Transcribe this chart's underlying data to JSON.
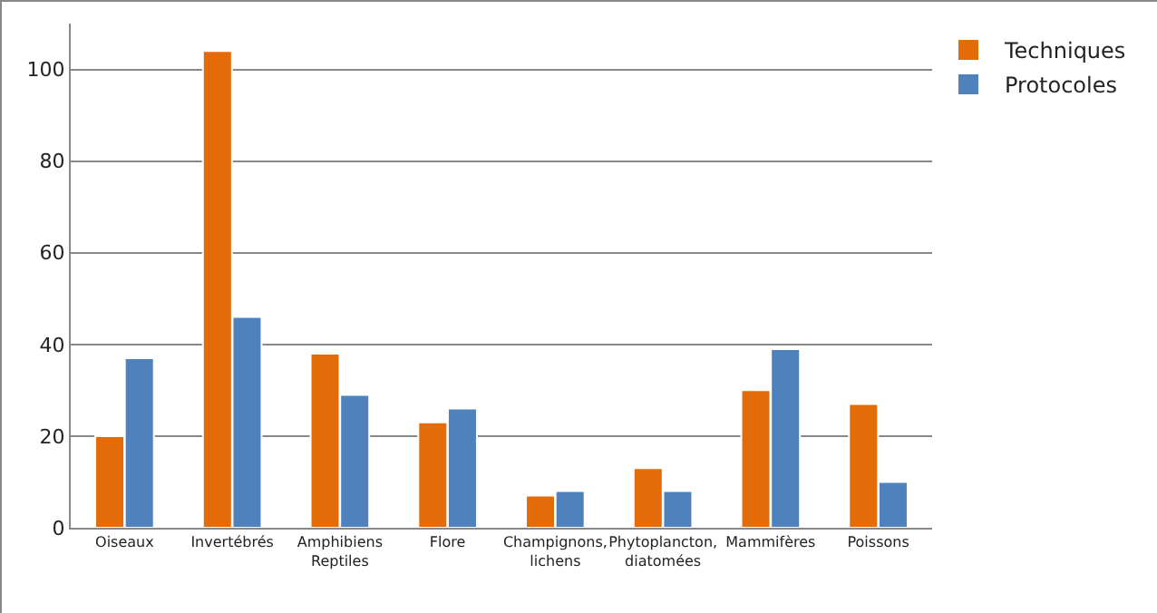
{
  "chart_data": {
    "type": "bar",
    "categories": [
      "Oiseaux",
      "Invertébrés",
      "Amphibiens\nReptiles",
      "Flore",
      "Champignons,\nlichens",
      "Phytoplancton,\ndiatomées",
      "Mammifères",
      "Poissons"
    ],
    "series": [
      {
        "name": "Techniques",
        "color": "#e36c09",
        "values": [
          20,
          104,
          38,
          23,
          7,
          13,
          30,
          27
        ]
      },
      {
        "name": "Protocoles",
        "color": "#4f81bd",
        "values": [
          37,
          46,
          29,
          26,
          8,
          8,
          39,
          10
        ]
      }
    ],
    "ylim": [
      0,
      110
    ],
    "yticks": [
      0,
      20,
      40,
      60,
      80,
      100
    ],
    "grid": "y",
    "legend": "top right"
  }
}
